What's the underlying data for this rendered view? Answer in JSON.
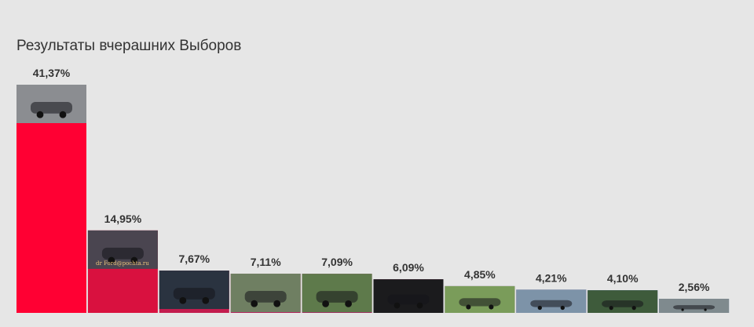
{
  "chart_data": {
    "type": "bar",
    "title": "Результаты вчерашних Выборов",
    "categories": [
      "",
      "",
      "",
      "",
      "",
      "",
      "",
      "",
      "",
      ""
    ],
    "values": [
      41.37,
      14.95,
      7.67,
      7.11,
      7.09,
      6.09,
      4.85,
      4.21,
      4.1,
      2.56
    ],
    "labels": [
      "41,37%",
      "14,95%",
      "7,67%",
      "7,11%",
      "7,09%",
      "6,09%",
      "4,85%",
      "4,21%",
      "4,10%",
      "2,56%"
    ],
    "colors": [
      "#ff0033",
      "#d9113f",
      "#c31c4e",
      "#b1245b",
      "#a22560",
      "#8e2964",
      "#6f3a7b",
      "#5b4287",
      "#2f4f95",
      "#2a53a0"
    ],
    "photo_colors": [
      "#8b8d91",
      "#4a4550",
      "#2a3340",
      "#6f7f62",
      "#5e7a4b",
      "#1b1b1d",
      "#7a9c5a",
      "#7d93a8",
      "#3e5b3b",
      "#7f8a8e"
    ],
    "photo_caption": "dr Ford@pochta.ru",
    "ylim": [
      0,
      41.37
    ],
    "grid": false,
    "legend": "none"
  }
}
